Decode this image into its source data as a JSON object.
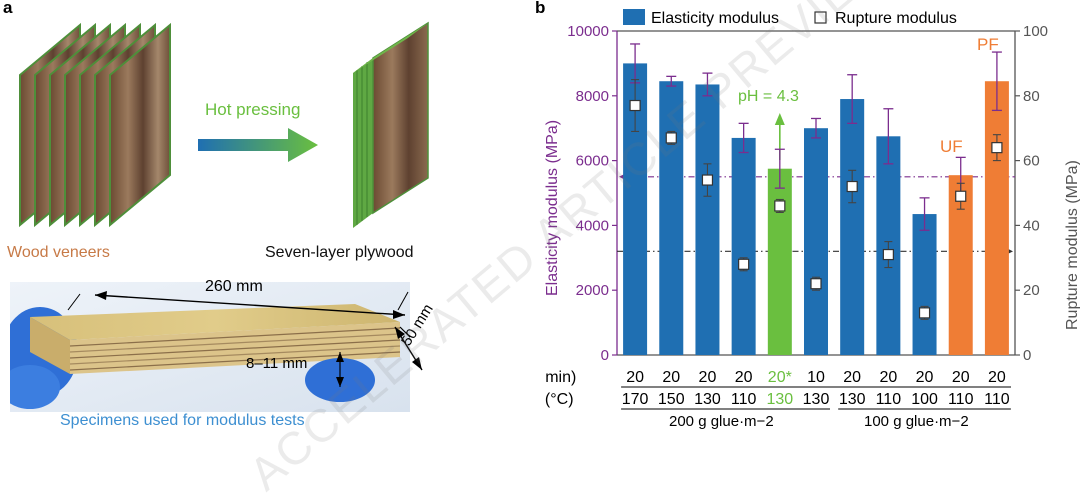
{
  "panel_a": {
    "letter": "a",
    "process_label": "Hot pressing",
    "veneers_label": "Wood veneers",
    "plywood_label": "Seven-layer plywood",
    "length_label": "260 mm",
    "width_label": "50 mm",
    "thickness_label": "8–11 mm",
    "caption": "Specimens used for modulus tests"
  },
  "panel_b": {
    "letter": "b"
  },
  "watermark": "ACCELERATED ARTICLE PREVIEW",
  "colors": {
    "blue": "#1f6fb2",
    "green": "#6abf3f",
    "orange": "#ef7d35",
    "purple": "#7b2d8e",
    "gray": "#555555",
    "veneer_brown": "#c77a47",
    "caption_blue": "#3d8fd1"
  },
  "chart_data": {
    "type": "bar",
    "legend": [
      "Elasticity modulus",
      "Rupture modulus"
    ],
    "ylabel_left": "Elasticity modulus (MPa)",
    "ylabel_right": "Rupture modulus (MPa)",
    "ylim_left": [
      0,
      10000
    ],
    "ylim_right": [
      0,
      100
    ],
    "yticks_left": [
      "0",
      "2000",
      "4000",
      "6000",
      "8000",
      "10000"
    ],
    "yticks_right": [
      "0",
      "20",
      "40",
      "60",
      "80",
      "100"
    ],
    "row_labels": [
      "t (min)",
      "T (°C)"
    ],
    "t_values": [
      "20",
      "20",
      "20",
      "20",
      "20*",
      "10",
      "20",
      "20",
      "20",
      "20",
      "20"
    ],
    "T_values": [
      "170",
      "150",
      "130",
      "110",
      "130",
      "130",
      "130",
      "110",
      "100",
      "110",
      "110"
    ],
    "group_labels": [
      "200 g glue·m−2",
      "100 g glue·m−2"
    ],
    "bar_colors": [
      "blue",
      "blue",
      "blue",
      "blue",
      "green",
      "blue",
      "blue",
      "blue",
      "blue",
      "orange",
      "orange"
    ],
    "elasticity": [
      9000,
      8450,
      8350,
      6700,
      5750,
      7000,
      7900,
      6750,
      4350,
      5550,
      8450
    ],
    "elasticity_err": [
      600,
      150,
      350,
      450,
      600,
      300,
      750,
      850,
      500,
      550,
      900
    ],
    "rupture": [
      77,
      67,
      54,
      28,
      46,
      22,
      52,
      31,
      13,
      49,
      64
    ],
    "rupture_err": [
      8,
      2,
      5,
      2,
      2,
      2,
      5,
      4,
      2,
      4,
      4
    ],
    "annotations": {
      "ph": "pH = 4.3",
      "uf": "UF",
      "pf": "PF"
    },
    "ref_line_elasticity": 5500,
    "ref_line_rupture": 32
  }
}
